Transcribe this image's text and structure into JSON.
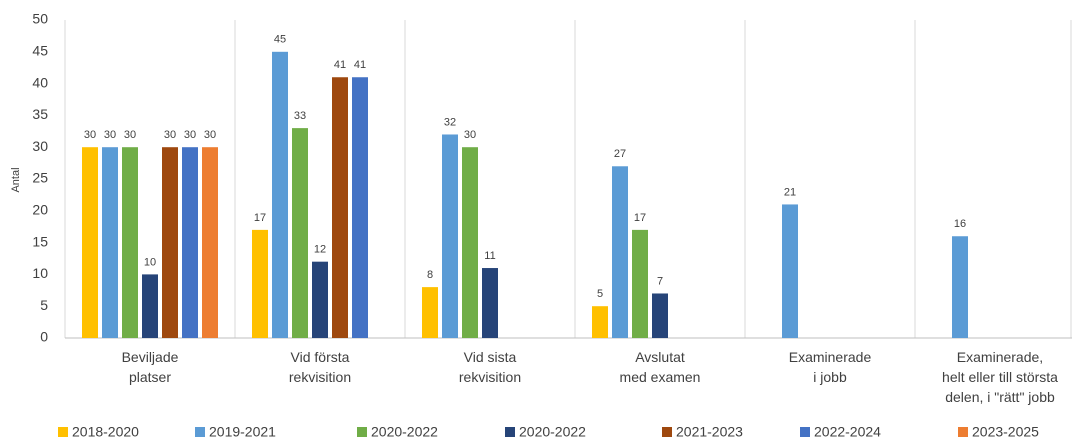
{
  "chart_data": {
    "type": "bar",
    "y_label": "Antal",
    "categories": [
      [
        "Beviljade",
        "platser"
      ],
      [
        "Vid första",
        "rekvisition"
      ],
      [
        "Vid sista",
        "rekvisition"
      ],
      [
        "Avslutat",
        "med examen"
      ],
      [
        "Examinerade",
        "i jobb"
      ],
      [
        "Examinerade,",
        "helt eller till största",
        "delen, i \"rätt\" jobb"
      ]
    ],
    "series": [
      {
        "name": "2018-2020",
        "color": "#ffc000",
        "values": [
          30,
          17,
          8,
          5,
          null,
          null
        ]
      },
      {
        "name": "2019-2021",
        "color": "#5b9bd5",
        "values": [
          30,
          45,
          32,
          27,
          21,
          16
        ]
      },
      {
        "name": "2020-2022",
        "color": "#70ad47",
        "values": [
          30,
          33,
          30,
          17,
          null,
          null
        ]
      },
      {
        "name": "2020-2022",
        "color": "#264478",
        "values": [
          10,
          12,
          11,
          7,
          null,
          null
        ]
      },
      {
        "name": "2021-2023",
        "color": "#9e480e",
        "values": [
          30,
          41,
          null,
          null,
          null,
          null
        ]
      },
      {
        "name": "2022-2024",
        "color": "#4472c4",
        "values": [
          30,
          41,
          null,
          null,
          null,
          null
        ]
      },
      {
        "name": "2023-2025",
        "color": "#ed7d31",
        "values": [
          30,
          null,
          null,
          null,
          null,
          null
        ]
      }
    ],
    "ylim": [
      0,
      50
    ],
    "yticks": [
      0,
      5,
      10,
      15,
      20,
      25,
      30,
      35,
      40,
      45,
      50
    ],
    "grid": false
  }
}
